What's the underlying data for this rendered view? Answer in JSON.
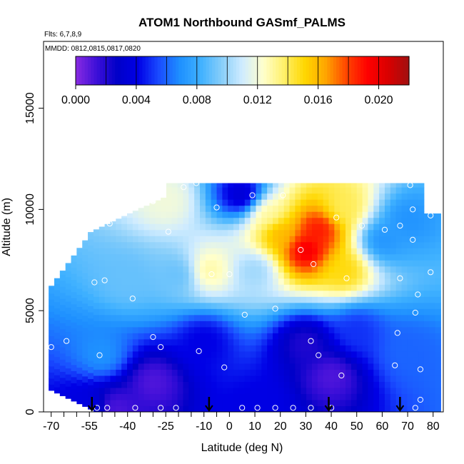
{
  "chart_data": {
    "type": "heatmap",
    "title": "ATOM1 Northbound GASmf_PALMS",
    "annotations": {
      "flights": "Flts: 6,7,8,9",
      "dates": "MMDD: 0812,0815,0817,0820"
    },
    "xlabel": "Latitude (deg N)",
    "ylabel": "Altitude (m)",
    "xlim": [
      -73,
      84
    ],
    "ylim": [
      0,
      18300
    ],
    "xticks": [
      -70,
      -55,
      -40,
      -25,
      -10,
      0,
      10,
      20,
      30,
      40,
      50,
      60,
      70,
      80
    ],
    "xtick_labels": [
      "-70",
      "-55",
      "-40",
      "-25",
      "-10",
      "0",
      "10",
      "20",
      "30",
      "40",
      "50",
      "60",
      "70",
      "80"
    ],
    "xticks_minor": [
      -65,
      -60,
      -50,
      -45,
      -35,
      -30,
      -20,
      -15,
      -5
    ],
    "yticks": [
      0,
      5000,
      10000,
      15000
    ],
    "ytick_labels": [
      "0",
      "5000",
      "10000",
      "15000"
    ],
    "colorbar": {
      "range": [
        0.0,
        0.022
      ],
      "ticks": [
        0.0,
        0.004,
        0.008,
        0.012,
        0.016,
        0.02
      ],
      "tick_labels": [
        "0.000",
        "0.004",
        "0.008",
        "0.012",
        "0.016",
        "0.020"
      ],
      "colors": [
        "#8a2be2",
        "#3d0fd8",
        "#0000c8",
        "#0000e6",
        "#1a4cff",
        "#1e90ff",
        "#3fb1ff",
        "#87cefa",
        "#d0ecff",
        "#ffffcc",
        "#fff06a",
        "#ffd700",
        "#ffa500",
        "#ff4500",
        "#ff0000",
        "#d90000",
        "#a01010"
      ]
    },
    "field_features": [
      {
        "lat": -40,
        "alt": 6500,
        "value": 0.009
      },
      {
        "lat": -20,
        "alt": 6800,
        "value": 0.009
      },
      {
        "lat": -8,
        "alt": 7000,
        "value": 0.013
      },
      {
        "lat": 10,
        "alt": 7000,
        "value": 0.01
      },
      {
        "lat": 30,
        "alt": 8000,
        "value": 0.02
      },
      {
        "lat": 35,
        "alt": 9000,
        "value": 0.019
      },
      {
        "lat": 20,
        "alt": 8800,
        "value": 0.016
      },
      {
        "lat": 15,
        "alt": 9800,
        "value": 0.013
      },
      {
        "lat": 45,
        "alt": 10100,
        "value": 0.014
      },
      {
        "lat": 45,
        "alt": 7000,
        "value": 0.015
      },
      {
        "lat": -25,
        "alt": 10400,
        "value": 0.012
      },
      {
        "lat": 60,
        "alt": 8500,
        "value": 0.007
      },
      {
        "lat": -50,
        "alt": 2800,
        "value": 0.007
      },
      {
        "lat": -30,
        "alt": 1500,
        "value": 0.001
      },
      {
        "lat": 30,
        "alt": 3400,
        "value": 0.002
      },
      {
        "lat": 40,
        "alt": 1800,
        "value": 0.001
      },
      {
        "lat": -45,
        "alt": 200,
        "value": 0.001
      },
      {
        "lat": -55,
        "alt": 200,
        "value": 0.004
      },
      {
        "lat": 10,
        "alt": 200,
        "value": 0.004
      },
      {
        "lat": 70,
        "alt": 3000,
        "value": 0.006
      },
      {
        "lat": 70,
        "alt": 9500,
        "value": 0.007
      },
      {
        "lat": 5,
        "alt": 10700,
        "value": 0.003
      },
      {
        "lat": -10,
        "alt": 3500,
        "value": 0.004
      },
      {
        "lat": 50,
        "alt": 4000,
        "value": 0.005
      }
    ],
    "samples": [
      {
        "lat": -70,
        "alt": 3200
      },
      {
        "lat": -64,
        "alt": 3500
      },
      {
        "lat": -57,
        "alt": 8700
      },
      {
        "lat": -53,
        "alt": 6400
      },
      {
        "lat": -49,
        "alt": 6500
      },
      {
        "lat": -47,
        "alt": 9300
      },
      {
        "lat": -51,
        "alt": 2800
      },
      {
        "lat": -38,
        "alt": 5600
      },
      {
        "lat": -27,
        "alt": 3200
      },
      {
        "lat": -30,
        "alt": 3700
      },
      {
        "lat": -24,
        "alt": 8900
      },
      {
        "lat": -18,
        "alt": 11100
      },
      {
        "lat": -13,
        "alt": 11300
      },
      {
        "lat": -30,
        "alt": 10400
      },
      {
        "lat": -12,
        "alt": 3000
      },
      {
        "lat": -7,
        "alt": 6800
      },
      {
        "lat": -5,
        "alt": 10100
      },
      {
        "lat": -2,
        "alt": 2200
      },
      {
        "lat": 0,
        "alt": 6800
      },
      {
        "lat": 6,
        "alt": 4800
      },
      {
        "lat": 9,
        "alt": 10700
      },
      {
        "lat": 18,
        "alt": 5100
      },
      {
        "lat": 21,
        "alt": 10700
      },
      {
        "lat": 28,
        "alt": 8000
      },
      {
        "lat": 33,
        "alt": 7300
      },
      {
        "lat": 32,
        "alt": 3500
      },
      {
        "lat": 35,
        "alt": 2800
      },
      {
        "lat": 44,
        "alt": 1800
      },
      {
        "lat": 42,
        "alt": 9600
      },
      {
        "lat": 46,
        "alt": 6600
      },
      {
        "lat": 52,
        "alt": 9200
      },
      {
        "lat": 61,
        "alt": 9000
      },
      {
        "lat": 67,
        "alt": 9200
      },
      {
        "lat": 67,
        "alt": 6600
      },
      {
        "lat": 66,
        "alt": 3900
      },
      {
        "lat": 65,
        "alt": 2300
      },
      {
        "lat": 71,
        "alt": 11200
      },
      {
        "lat": 72,
        "alt": 10000
      },
      {
        "lat": 72,
        "alt": 8500
      },
      {
        "lat": 73,
        "alt": 4900
      },
      {
        "lat": 74,
        "alt": 5800
      },
      {
        "lat": 75,
        "alt": 2100
      },
      {
        "lat": 75,
        "alt": 600
      },
      {
        "lat": 79,
        "alt": 6900
      },
      {
        "lat": 79,
        "alt": 9700
      },
      {
        "lat": -52,
        "alt": 200
      },
      {
        "lat": -48,
        "alt": 200
      },
      {
        "lat": -37,
        "alt": 200
      },
      {
        "lat": -27,
        "alt": 200
      },
      {
        "lat": -21,
        "alt": 200
      },
      {
        "lat": 5,
        "alt": 200
      },
      {
        "lat": 11,
        "alt": 200
      },
      {
        "lat": 18,
        "alt": 200
      },
      {
        "lat": 25,
        "alt": 200
      },
      {
        "lat": 32,
        "alt": 200
      },
      {
        "lat": 40,
        "alt": 200
      },
      {
        "lat": 73,
        "alt": 200
      }
    ],
    "arrows_lat": [
      -54,
      -8,
      39,
      67
    ],
    "grid": false
  }
}
